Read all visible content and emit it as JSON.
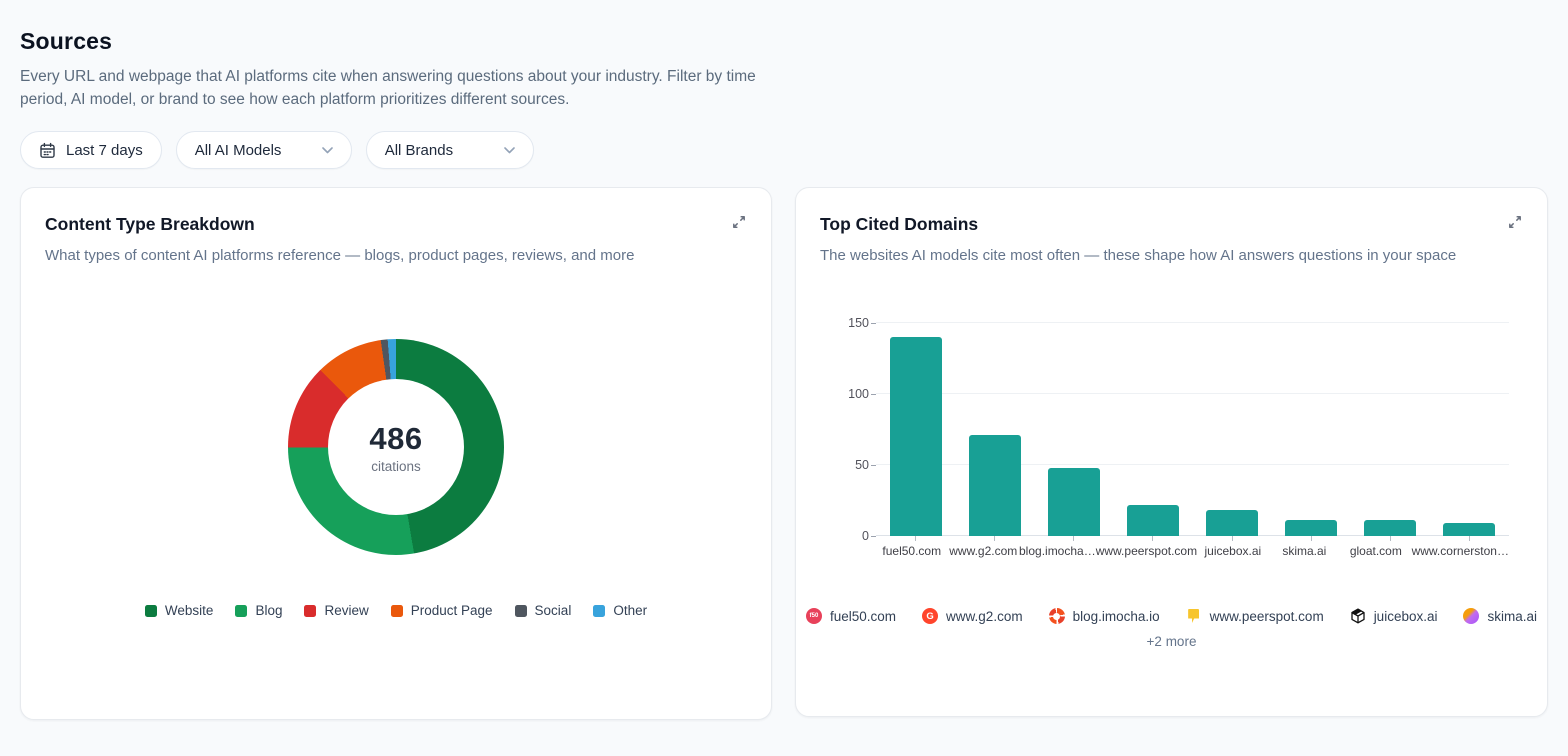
{
  "page": {
    "title": "Sources",
    "description": "Every URL and webpage that AI platforms cite when answering questions about your industry. Filter by time period, AI model, or brand to see how each platform prioritizes different sources."
  },
  "filters": {
    "date_range": "Last 7 days",
    "ai_model": "All AI Models",
    "brand": "All Brands"
  },
  "content_type_card": {
    "title": "Content Type Breakdown",
    "subtitle": "What types of content AI platforms reference — blogs, product pages, reviews, and more",
    "center_value": "486",
    "center_label": "citations"
  },
  "top_domains_card": {
    "title": "Top Cited Domains",
    "subtitle": "The websites AI models cite most often — these shape how AI answers questions in your space",
    "more_label": "+2 more"
  },
  "chart_data": [
    {
      "type": "pie",
      "title": "Content Type Breakdown",
      "donut": true,
      "total": 486,
      "center_text": "486 citations",
      "categories": [
        "Website",
        "Blog",
        "Review",
        "Product Page",
        "Social",
        "Other"
      ],
      "values": [
        230,
        134,
        62,
        49,
        5,
        6
      ],
      "colors": [
        "#0c7c40",
        "#16a05a",
        "#d92c2c",
        "#ea580c",
        "#4f565f",
        "#38a3dc"
      ],
      "legend_position": "bottom"
    },
    {
      "type": "bar",
      "title": "Top Cited Domains",
      "categories": [
        "fuel50.com",
        "www.g2.com",
        "blog.imocha…",
        "www.peerspot.com",
        "juicebox.ai",
        "skima.ai",
        "gloat.com",
        "www.cornerston…"
      ],
      "values": [
        140,
        71,
        48,
        22,
        18,
        11,
        11,
        9
      ],
      "bar_color": "#18a095",
      "xlabel": "",
      "ylabel": "",
      "ylim": [
        0,
        150
      ],
      "yticks": [
        0,
        50,
        100,
        150
      ],
      "grid": true,
      "legend_position": "none"
    }
  ],
  "domain_legend": {
    "items": [
      {
        "label": "fuel50.com",
        "icon": "fuel50-favicon"
      },
      {
        "label": "www.g2.com",
        "icon": "g2-favicon"
      },
      {
        "label": "blog.imocha.io",
        "icon": "imocha-favicon"
      },
      {
        "label": "www.peerspot.com",
        "icon": "peerspot-favicon"
      },
      {
        "label": "juicebox.ai",
        "icon": "juicebox-favicon"
      },
      {
        "label": "skima.ai",
        "icon": "skima-favicon"
      }
    ]
  }
}
